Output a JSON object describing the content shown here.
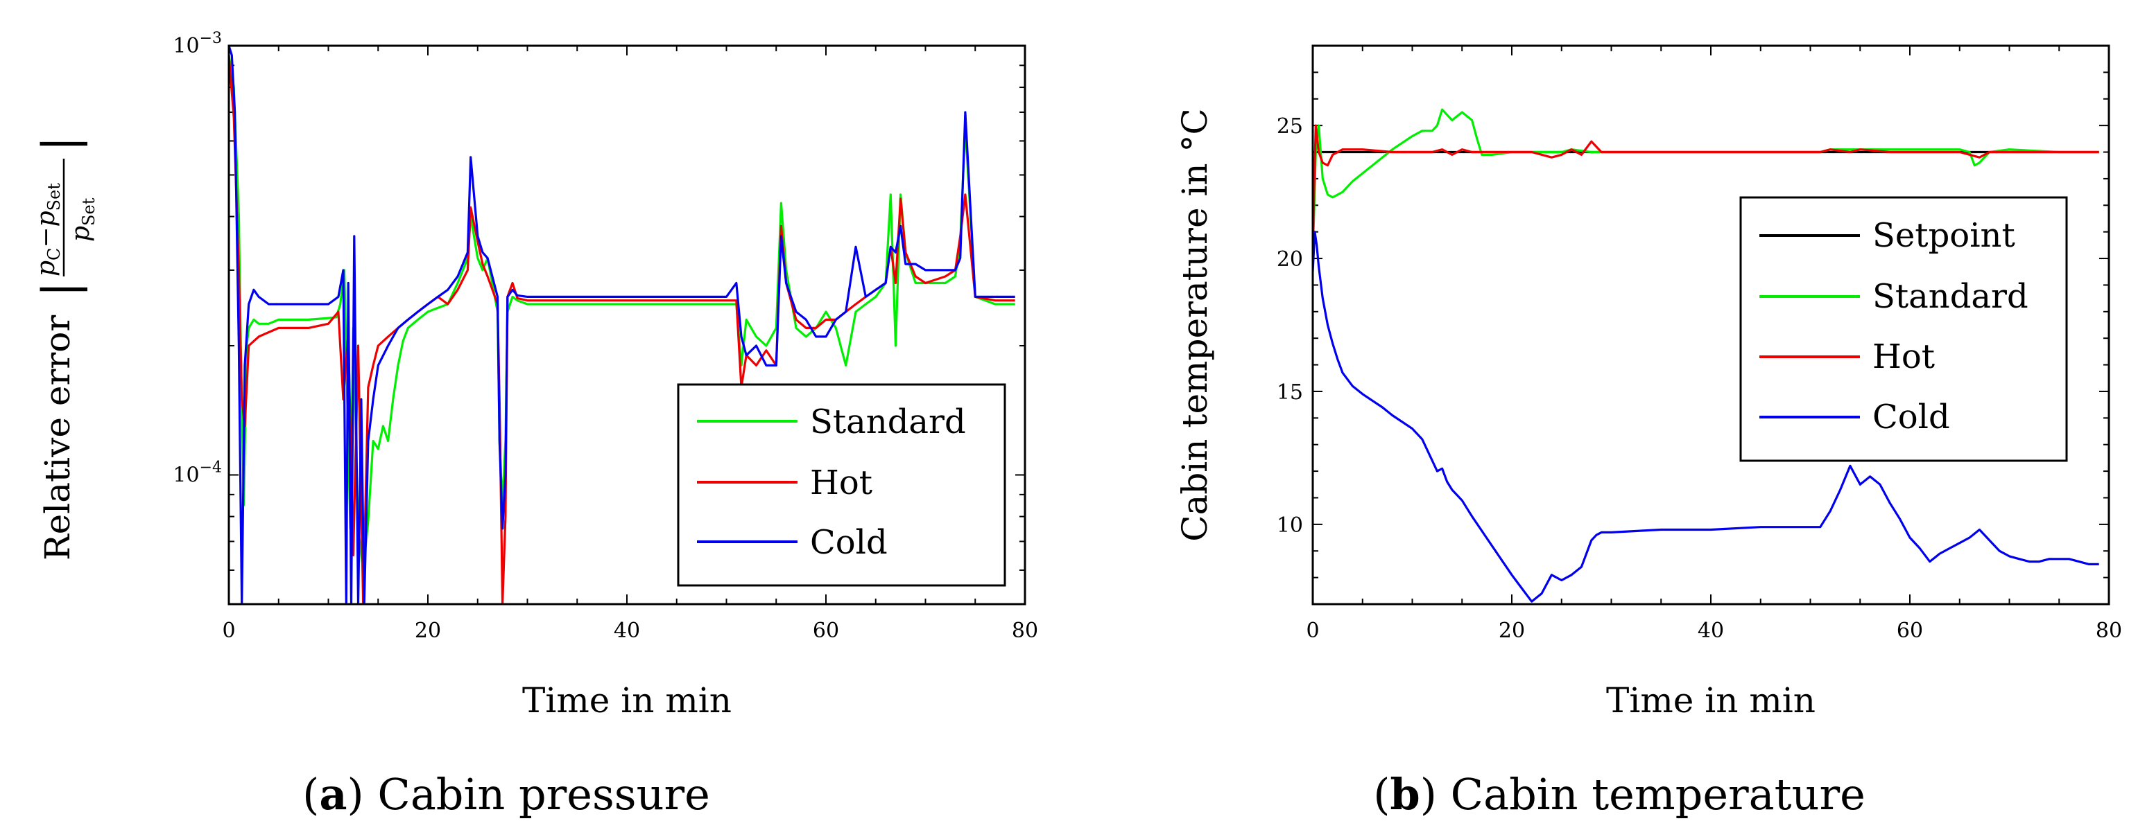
{
  "chart_data": [
    {
      "type": "line",
      "caption_label": "a",
      "caption_text": "Cabin pressure",
      "xlabel": "Time in min",
      "ylabel": "Relative error",
      "ylabel_formula": "|(p_C − p_Set) / p_Set|",
      "yscale": "log",
      "xlim": [
        0,
        80
      ],
      "ylim": [
        5e-05,
        0.001
      ],
      "xticks": [
        "0",
        "20",
        "40",
        "60",
        "80"
      ],
      "yticks": [
        {
          "value": 0.001,
          "base": "10",
          "exp": "−3"
        },
        {
          "value": 0.0001,
          "base": "10",
          "exp": "−4"
        }
      ],
      "legend_position": "lower-right",
      "series": [
        {
          "name": "Standard",
          "color": "#00ee00",
          "x": [
            0,
            0.5,
            1,
            1.2,
            1.5,
            1.8,
            2,
            2.5,
            3,
            4,
            5,
            6,
            8,
            10,
            10.8,
            11.2,
            11.6,
            12,
            12.2,
            12.5,
            12.8,
            13,
            13.5,
            14,
            14.5,
            15,
            15.5,
            16,
            16.5,
            17,
            17.5,
            18,
            19,
            20,
            21,
            22,
            23,
            24,
            24.3,
            25,
            25.5,
            26,
            27,
            27.2,
            27.5,
            27.8,
            28,
            28.5,
            29,
            30,
            35,
            40,
            45,
            50,
            51,
            51.5,
            52,
            53,
            54,
            55,
            55.5,
            56,
            57,
            58,
            59,
            60,
            61,
            62,
            63,
            64,
            65,
            66,
            66.5,
            67,
            67.5,
            68,
            69,
            70,
            72,
            73,
            73.5,
            74,
            75,
            77,
            79
          ],
          "values": [
            0.00095,
            0.0008,
            0.0004,
            0.0002,
            8.5e-05,
            0.0002,
            0.00022,
            0.00023,
            0.000225,
            0.000225,
            0.00023,
            0.00023,
            0.00023,
            0.000232,
            0.000233,
            0.00025,
            0.0003,
            0.00012,
            7.5e-05,
            0.00022,
            0.00011,
            7.5e-05,
            6e-05,
            7.8e-05,
            0.00012,
            0.000115,
            0.00013,
            0.00012,
            0.00015,
            0.00018,
            0.000205,
            0.00022,
            0.00023,
            0.00024,
            0.000245,
            0.00025,
            0.00028,
            0.00032,
            0.0004,
            0.00032,
            0.0003,
            0.00032,
            0.00024,
            0.00012,
            8.5e-05,
            0.00012,
            0.00024,
            0.00026,
            0.000255,
            0.00025,
            0.00025,
            0.00025,
            0.00025,
            0.00025,
            0.00025,
            0.00018,
            0.00023,
            0.00021,
            0.0002,
            0.00022,
            0.00043,
            0.0003,
            0.00022,
            0.00021,
            0.00022,
            0.00024,
            0.00022,
            0.00018,
            0.00024,
            0.00025,
            0.00026,
            0.00028,
            0.00045,
            0.0002,
            0.00045,
            0.00033,
            0.00028,
            0.00028,
            0.00028,
            0.00029,
            0.00035,
            0.00065,
            0.00026,
            0.00025,
            0.00025
          ]
        },
        {
          "name": "Hot",
          "color": "#ee0000",
          "x": [
            0,
            0.5,
            1,
            1.3,
            1.6,
            2,
            2.5,
            3,
            4,
            5,
            6,
            8,
            10,
            11,
            11.5,
            12,
            12.5,
            13,
            13.5,
            14,
            14.5,
            15,
            16,
            17,
            18,
            19,
            20,
            21,
            22,
            23,
            24,
            24.3,
            25,
            25.5,
            26,
            27,
            27.2,
            27.5,
            27.8,
            28,
            28.5,
            29,
            30,
            35,
            40,
            45,
            50,
            51,
            51.5,
            52,
            53,
            54,
            55,
            55.5,
            56,
            57,
            58,
            59,
            60,
            61,
            62,
            63,
            64,
            65,
            66,
            66.5,
            67,
            67.5,
            68,
            69,
            70,
            72,
            73,
            73.5,
            74,
            75,
            77,
            79
          ],
          "values": [
            0.00095,
            0.00068,
            0.0003,
            0.00015,
            0.00013,
            0.0002,
            0.000205,
            0.00021,
            0.000215,
            0.00022,
            0.00022,
            0.00022,
            0.000225,
            0.00024,
            0.00015,
            0.000215,
            6.5e-05,
            0.0002,
            5e-05,
            0.00016,
            0.00018,
            0.0002,
            0.00021,
            0.00022,
            0.00023,
            0.00024,
            0.00025,
            0.00026,
            0.00025,
            0.00027,
            0.0003,
            0.00042,
            0.00035,
            0.00031,
            0.00029,
            0.00025,
            0.00015,
            5e-05,
            8e-05,
            0.00026,
            0.00028,
            0.000258,
            0.000255,
            0.000255,
            0.000255,
            0.000255,
            0.000255,
            0.000255,
            0.00016,
            0.00019,
            0.00018,
            0.000195,
            0.00018,
            0.00038,
            0.00028,
            0.00023,
            0.00022,
            0.00022,
            0.00023,
            0.00023,
            0.00024,
            0.00025,
            0.00026,
            0.00027,
            0.00028,
            0.00034,
            0.00028,
            0.00044,
            0.00033,
            0.00029,
            0.00028,
            0.00029,
            0.0003,
            0.00036,
            0.00045,
            0.00026,
            0.000255,
            0.000255
          ]
        },
        {
          "name": "Cold",
          "color": "#0000ee",
          "x": [
            0,
            0.3,
            0.6,
            1,
            1.3,
            1.6,
            2,
            2.5,
            3,
            4,
            6,
            8,
            10,
            11,
            11.5,
            11.8,
            12,
            12.3,
            12.6,
            13,
            13.3,
            13.6,
            14,
            14.5,
            15,
            16,
            17,
            18,
            19,
            20,
            21,
            22,
            23,
            24,
            24.3,
            25,
            25.5,
            26,
            27,
            27.2,
            27.5,
            27.8,
            28,
            28.5,
            29,
            30,
            35,
            40,
            45,
            50,
            51,
            51.5,
            52,
            53,
            54,
            55,
            55.5,
            56,
            57,
            58,
            59,
            60,
            61,
            62,
            63,
            64,
            65,
            66,
            66.5,
            67,
            67.5,
            68,
            69,
            70,
            72,
            73,
            73.5,
            74,
            75,
            77,
            79
          ],
          "values": [
            0.001,
            0.00095,
            0.0007,
            0.0002,
            5e-05,
            0.00018,
            0.00025,
            0.00027,
            0.00026,
            0.00025,
            0.00025,
            0.00025,
            0.00025,
            0.00026,
            0.0003,
            5e-05,
            0.00028,
            5e-05,
            0.00036,
            5e-05,
            0.00015,
            5e-05,
            0.00012,
            0.00015,
            0.00018,
            0.0002,
            0.00022,
            0.00023,
            0.00024,
            0.00025,
            0.00026,
            0.00027,
            0.00029,
            0.00033,
            0.00055,
            0.00036,
            0.00033,
            0.00032,
            0.00026,
            0.00012,
            7.5e-05,
            0.0001,
            0.00026,
            0.00027,
            0.000262,
            0.00026,
            0.00026,
            0.00026,
            0.00026,
            0.00026,
            0.00028,
            0.00021,
            0.00019,
            0.0002,
            0.00018,
            0.00018,
            0.00036,
            0.00028,
            0.00024,
            0.00023,
            0.00021,
            0.00021,
            0.00023,
            0.00024,
            0.00034,
            0.00026,
            0.00027,
            0.00028,
            0.00034,
            0.00033,
            0.00038,
            0.00031,
            0.00031,
            0.0003,
            0.0003,
            0.0003,
            0.00032,
            0.0007,
            0.00026,
            0.00026,
            0.00026
          ]
        }
      ]
    },
    {
      "type": "line",
      "caption_label": "b",
      "caption_text": "Cabin temperature",
      "xlabel": "Time in min",
      "ylabel": "Cabin temperature in °C",
      "yscale": "linear",
      "xlim": [
        0,
        80
      ],
      "ylim": [
        7,
        28
      ],
      "xticks": [
        "0",
        "20",
        "40",
        "60",
        "80"
      ],
      "yticks": [
        "10",
        "15",
        "20",
        "25"
      ],
      "legend_position": "upper-right",
      "series": [
        {
          "name": "Setpoint",
          "color": "#000000",
          "x": [
            0,
            79
          ],
          "values": [
            24,
            24
          ]
        },
        {
          "name": "Standard",
          "color": "#00ee00",
          "x": [
            0,
            0.3,
            0.6,
            1,
            1.5,
            2,
            3,
            4,
            6,
            8,
            10,
            11,
            12,
            12.5,
            13,
            13.5,
            14,
            15,
            16,
            16.5,
            17,
            18,
            20,
            22,
            24,
            25,
            26,
            28,
            29,
            30,
            31,
            51,
            52,
            55,
            60,
            65,
            66,
            66.5,
            67,
            68,
            70,
            75,
            79
          ],
          "values": [
            20,
            24,
            25,
            23,
            22.4,
            22.3,
            22.5,
            22.9,
            23.5,
            24.1,
            24.6,
            24.8,
            24.8,
            25,
            25.6,
            25.4,
            25.2,
            25.5,
            25.2,
            24.5,
            23.9,
            23.9,
            24,
            24,
            24,
            24,
            24.1,
            24,
            24,
            24,
            24,
            24,
            24.1,
            24.1,
            24.1,
            24.1,
            24,
            23.5,
            23.6,
            24,
            24.1,
            24,
            24
          ]
        },
        {
          "name": "Hot",
          "color": "#ee0000",
          "x": [
            0,
            0.3,
            0.6,
            1,
            1.5,
            2,
            3,
            5,
            8,
            10,
            12,
            13,
            14,
            15,
            16,
            18,
            20,
            22,
            24,
            25,
            26,
            27,
            28,
            29,
            30,
            31,
            51,
            52,
            54,
            55,
            58,
            60,
            65,
            67,
            68,
            70,
            75,
            79
          ],
          "values": [
            20.5,
            25,
            24,
            23.6,
            23.5,
            23.9,
            24.1,
            24.1,
            24,
            24,
            24,
            24.1,
            23.9,
            24.1,
            24,
            24,
            24,
            24,
            23.8,
            23.9,
            24.1,
            23.9,
            24.4,
            24,
            24,
            24,
            24,
            24.1,
            24,
            24.1,
            24,
            24,
            24,
            23.8,
            24,
            24,
            24,
            24
          ]
        },
        {
          "name": "Cold",
          "color": "#0000ee",
          "x": [
            0,
            0.2,
            0.4,
            0.6,
            1,
            1.5,
            2,
            2.5,
            3,
            4,
            5,
            7,
            8,
            10,
            11,
            12,
            12.5,
            13,
            13.5,
            14,
            15,
            16,
            18,
            20,
            21,
            22,
            23,
            24,
            25,
            26,
            27,
            28,
            28.5,
            29,
            30,
            35,
            40,
            45,
            51,
            52,
            53,
            54,
            55,
            56,
            57,
            58,
            59,
            60,
            61,
            62,
            63,
            64,
            65,
            66,
            67,
            68,
            69,
            70,
            71,
            72,
            73,
            74,
            75,
            76,
            77,
            78,
            79
          ],
          "values": [
            19.5,
            21,
            20.5,
            19.7,
            18.5,
            17.5,
            16.8,
            16.2,
            15.7,
            15.2,
            14.9,
            14.4,
            14.1,
            13.6,
            13.2,
            12.4,
            12,
            12.1,
            11.6,
            11.3,
            10.9,
            10.3,
            9.2,
            8.1,
            7.6,
            7.1,
            7.4,
            8.1,
            7.9,
            8.1,
            8.4,
            9.4,
            9.6,
            9.7,
            9.7,
            9.8,
            9.8,
            9.9,
            9.9,
            10.5,
            11.3,
            12.2,
            11.5,
            11.8,
            11.5,
            10.8,
            10.2,
            9.5,
            9.1,
            8.6,
            8.9,
            9.1,
            9.3,
            9.5,
            9.8,
            9.4,
            9.0,
            8.8,
            8.7,
            8.6,
            8.6,
            8.7,
            8.7,
            8.7,
            8.6,
            8.5,
            8.5
          ]
        }
      ]
    }
  ]
}
